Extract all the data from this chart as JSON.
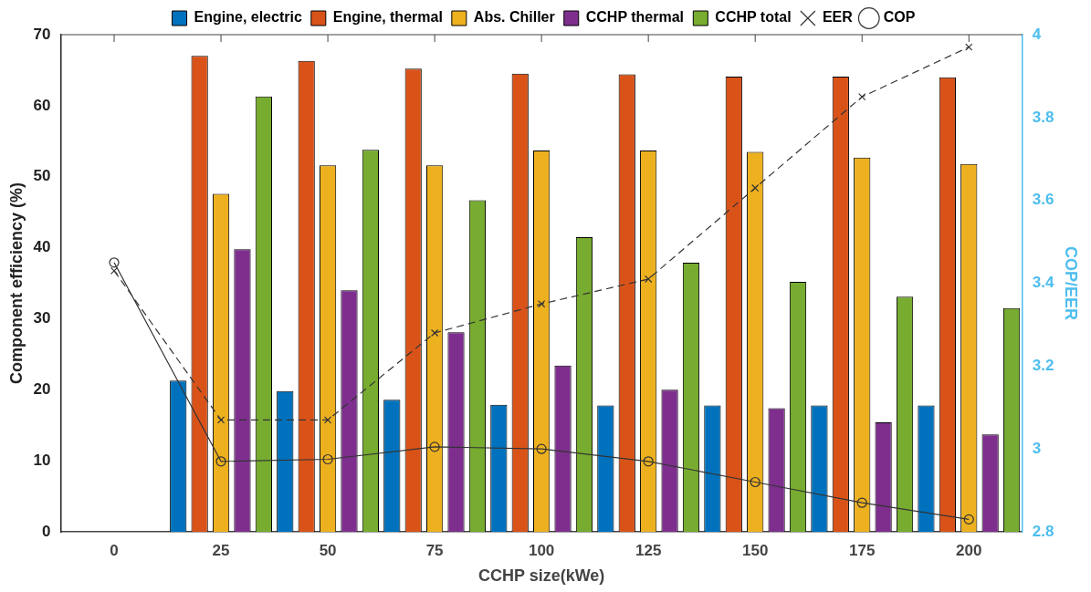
{
  "chart_data": {
    "type": "bar",
    "xlabel": "CCHP size(kWe)",
    "ylabel": "Component efficiency (%)",
    "y2label": "COP/EER",
    "categories": [
      "0",
      "25",
      "50",
      "75",
      "100",
      "125",
      "150",
      "175",
      "200"
    ],
    "ylim": [
      0,
      70
    ],
    "yticks": [
      0,
      10,
      20,
      30,
      40,
      50,
      60,
      70
    ],
    "y2lim": [
      2.8,
      4
    ],
    "y2ticks": [
      2.8,
      3,
      3.2,
      3.4,
      3.6,
      3.8,
      4
    ],
    "grid": false,
    "legend": "top",
    "series": [
      {
        "name": "Engine, electric",
        "color": "#0072bd",
        "values": [
          null,
          21.3,
          19.8,
          18.6,
          17.9,
          17.8,
          17.8,
          17.8,
          17.8
        ]
      },
      {
        "name": "Engine, thermal",
        "color": "#d95319",
        "values": [
          null,
          67,
          66.3,
          65.2,
          64.5,
          64.4,
          64.1,
          64.1,
          64
        ]
      },
      {
        "name": "Abs. Chiller",
        "color": "#edb120",
        "values": [
          null,
          47.6,
          51.6,
          51.6,
          53.7,
          53.7,
          53.5,
          52.7,
          51.8
        ]
      },
      {
        "name": "CCHP thermal",
        "color": "#7e2f8e",
        "values": [
          null,
          39.8,
          34,
          28.1,
          23.4,
          20,
          17.4,
          15.4,
          13.7
        ]
      },
      {
        "name": "CCHP total",
        "color": "#77ac30",
        "values": [
          null,
          61.3,
          53.8,
          46.7,
          41.5,
          37.9,
          35.2,
          33.1,
          31.5
        ]
      },
      {
        "name": "EER",
        "type": "line",
        "axis": "y2",
        "color": "#333333",
        "marker": "cross",
        "line_style": "dashed",
        "values": [
          3.43,
          3.07,
          3.07,
          3.28,
          3.35,
          3.41,
          3.63,
          3.85,
          3.97
        ]
      },
      {
        "name": "COP",
        "type": "line",
        "axis": "y2",
        "color": "#333333",
        "marker": "circle",
        "line_style": "solid",
        "values": [
          3.45,
          2.97,
          2.975,
          3.005,
          3.0,
          2.97,
          2.92,
          2.87,
          2.83
        ]
      }
    ]
  }
}
